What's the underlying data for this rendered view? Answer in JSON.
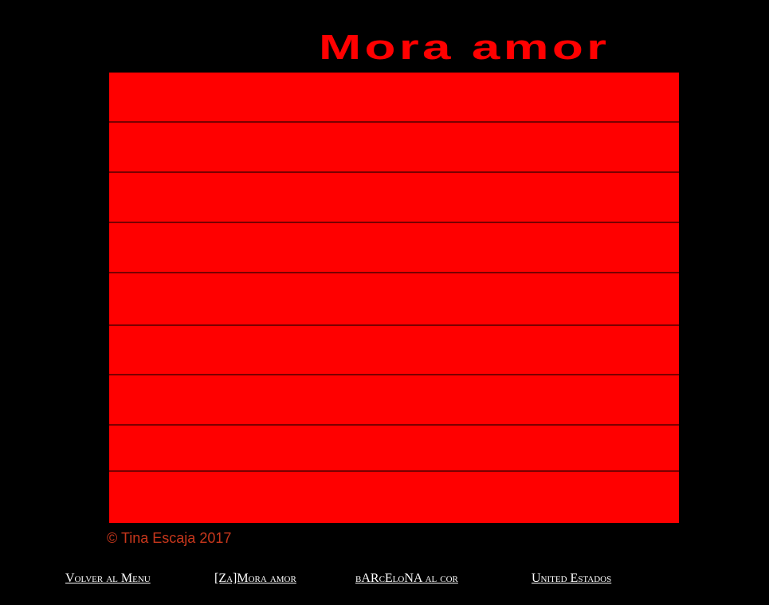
{
  "title": "Mora amor",
  "rows": 9,
  "colors": {
    "background": "#000000",
    "accent": "#ff0000"
  },
  "copyright": "© Tina Escaja  2017",
  "nav": [
    {
      "label": "Volver al Menu"
    },
    {
      "label": "[Za]Mora amor"
    },
    {
      "label": "bARcEloNA al cor"
    },
    {
      "label": "United Estados"
    }
  ]
}
